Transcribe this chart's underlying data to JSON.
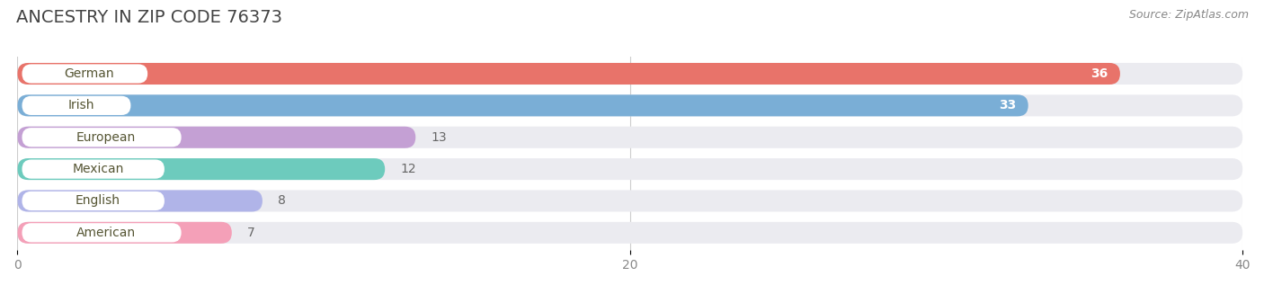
{
  "title": "ANCESTRY IN ZIP CODE 76373",
  "source": "Source: ZipAtlas.com",
  "categories": [
    "German",
    "Irish",
    "European",
    "Mexican",
    "English",
    "American"
  ],
  "values": [
    36,
    33,
    13,
    12,
    8,
    7
  ],
  "bar_colors": [
    "#E8736A",
    "#7AAED6",
    "#C4A0D4",
    "#6DCBBD",
    "#B0B4E8",
    "#F4A0B8"
  ],
  "bar_bg_color": "#EBEBF0",
  "xlim": [
    0,
    40
  ],
  "xticks": [
    0,
    20,
    40
  ],
  "label_fontsize": 10,
  "value_fontsize": 10,
  "title_fontsize": 14,
  "source_fontsize": 9,
  "bar_height": 0.68,
  "background_color": "#ffffff",
  "label_bg_color": "#ffffff",
  "label_text_color": "#555533",
  "grid_color": "#cccccc"
}
